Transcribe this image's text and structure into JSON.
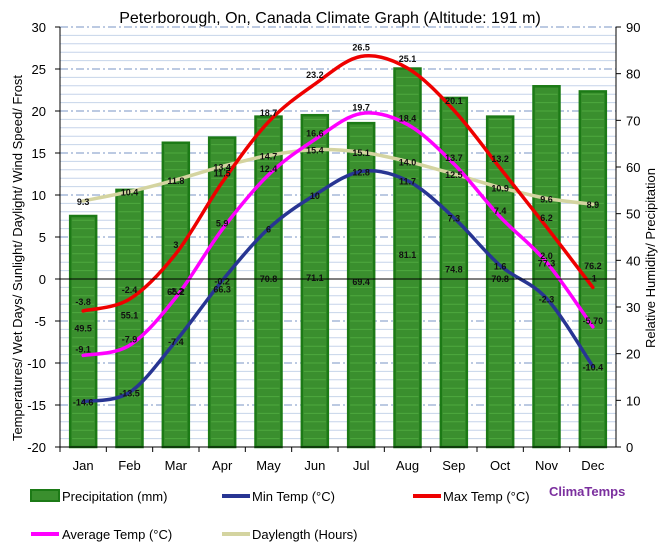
{
  "chart_data": {
    "type": "bar+line",
    "title": "Peterborough, On, Canada Climate Graph (Altitude: 191 m)",
    "ylabel_left": "Temperatures/ Wet Days/ Sunlight/ Daylight/ Wind Speed/ Frost",
    "ylabel_right": "Relative Humidity/ Precipitation",
    "ylim_left": [
      -20,
      30
    ],
    "ylim_right": [
      0,
      90
    ],
    "yticks_left": [
      "-20",
      "-15",
      "-10",
      "-5",
      "0",
      "5",
      "10",
      "15",
      "20",
      "25",
      "30"
    ],
    "yticks_right": [
      "0",
      "10",
      "20",
      "30",
      "40",
      "50",
      "60",
      "70",
      "80",
      "90"
    ],
    "categories": [
      "Jan",
      "Feb",
      "Mar",
      "Apr",
      "May",
      "Jun",
      "Jul",
      "Aug",
      "Sep",
      "Oct",
      "Nov",
      "Dec"
    ],
    "precipitation": {
      "name": "Precipitation (mm)",
      "color": "#3a8f2e",
      "values": [
        49.5,
        55.1,
        65.2,
        66.3,
        70.8,
        71.1,
        69.4,
        81.1,
        74.8,
        70.8,
        77.3,
        76.2
      ],
      "labels": [
        "49.5",
        "55.1",
        "65.2",
        "66.3",
        "70.8",
        "71.1",
        "69.4",
        "81.1",
        "74.8",
        "70.8",
        "77.3",
        "76.2"
      ]
    },
    "series": [
      {
        "name": "Min Temp (°C)",
        "color": "#283593",
        "values": [
          -14.6,
          -13.5,
          -7.4,
          -0.2,
          6,
          10,
          12.8,
          11.7,
          7.3,
          1.6,
          -2.3,
          -10.4
        ],
        "labels": [
          "-14.6",
          "-13.5",
          "-7.4",
          "-0.2",
          "6",
          "10",
          "12.8",
          "11.7",
          "7.3",
          "1.6",
          "-2.3",
          "-10.4"
        ]
      },
      {
        "name": "Max Temp (°C)",
        "color": "#ee0000",
        "values": [
          -3.8,
          -2.4,
          3,
          11.5,
          18.7,
          23.2,
          26.5,
          25.1,
          20.1,
          13.2,
          6.2,
          -1
        ],
        "labels": [
          "-3.8",
          "-2.4",
          "3",
          "11.5",
          "18.7",
          "23.2",
          "26.5",
          "25.1",
          "20.1",
          "13.2",
          "6.2",
          "-1"
        ]
      },
      {
        "name": "Average Temp (°C)",
        "color": "#ff00ff",
        "values": [
          -9.1,
          -7.9,
          -2.2,
          5.9,
          12.4,
          16.6,
          19.7,
          18.4,
          13.7,
          7.4,
          2.0,
          -5.7
        ],
        "labels": [
          "-9.1",
          "-7.9",
          "-2.2",
          "5.9",
          "12.4",
          "16.6",
          "19.7",
          "18.4",
          "13.7",
          "7.4",
          "2.0",
          "-5.70"
        ]
      },
      {
        "name": "Daylength (Hours)",
        "color": "#d4d4a0",
        "values": [
          9.3,
          10.4,
          11.8,
          13.4,
          14.7,
          15.4,
          15.1,
          14.0,
          12.5,
          10.9,
          9.6,
          8.9
        ],
        "labels": [
          "9.3",
          "10.4",
          "11.8",
          "13.4",
          "14.7",
          "15.4",
          "15.1",
          "14.0",
          "12.5",
          "10.9",
          "9.6",
          "8.9"
        ]
      }
    ],
    "legend": [
      "Precipitation (mm)",
      "Min Temp (°C)",
      "Max Temp (°C)",
      "Average Temp (°C)",
      "Daylength (Hours)"
    ],
    "brand": "ClimaTemps",
    "brand_color": "#7b2f9e",
    "zero_line": true,
    "grid": "horizontal"
  }
}
